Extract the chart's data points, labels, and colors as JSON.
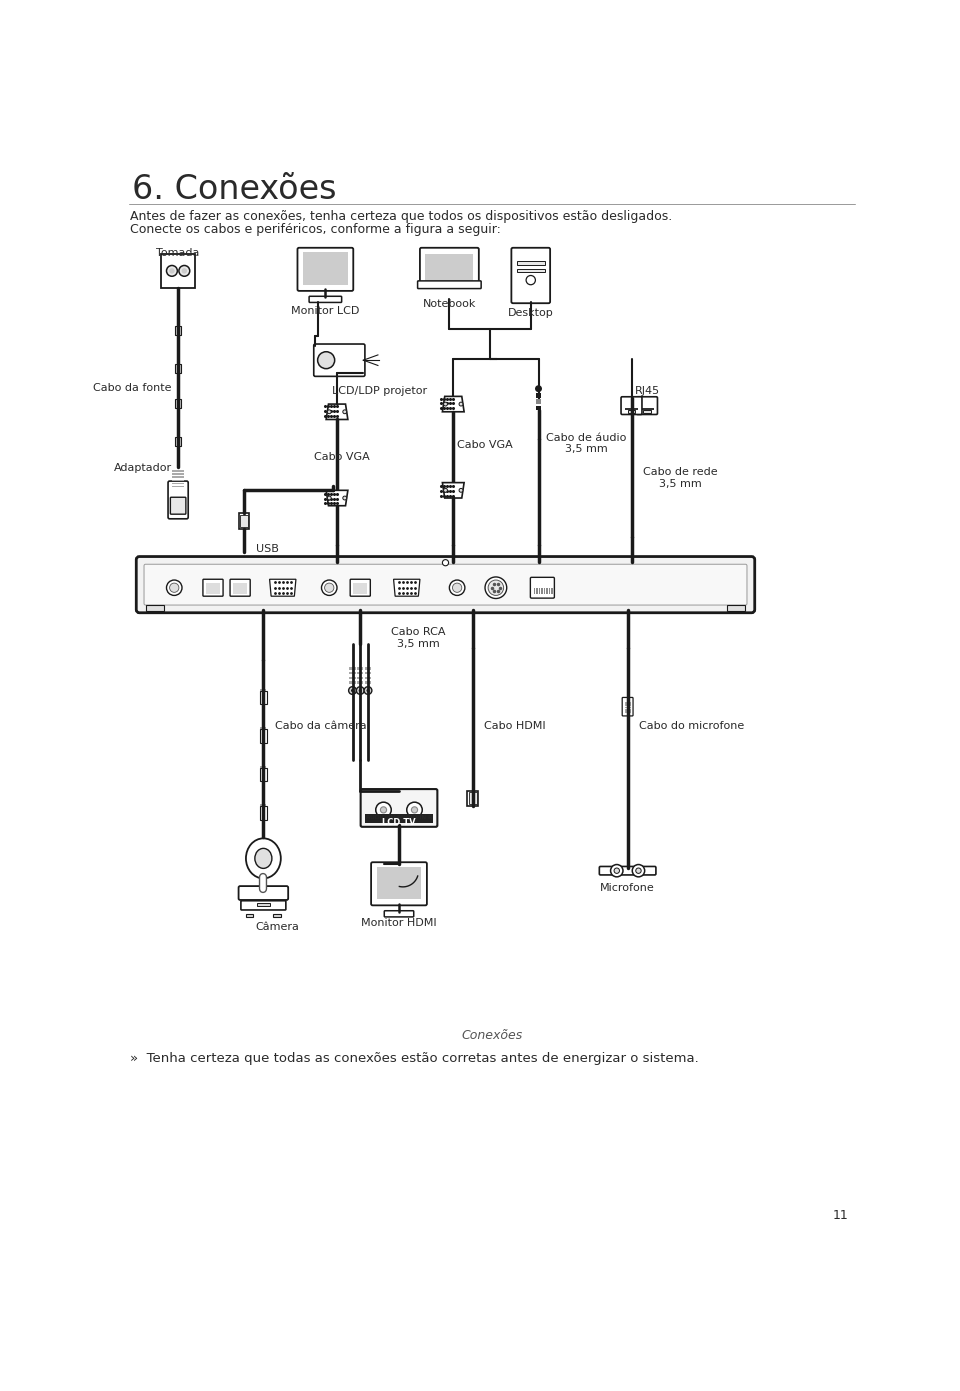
{
  "title": "6. Conexões",
  "line1": "Antes de fazer as conexões, tenha certeza que todos os dispositivos estão desligados.",
  "line2": "Conecte os cabos e periféricos, conforme a figura a seguir:",
  "footer_note": "»  Tenha certeza que todas as conexões estão corretas antes de energizar o sistema.",
  "footer_caption": "Conexões",
  "page_number": "11",
  "bg_color": "#ffffff",
  "text_color": "#2a2a2a",
  "label_color": "#2a2a2a",
  "line_color": "#1a1a1a",
  "gray": "#888888",
  "lightgray": "#cccccc",
  "darkgray": "#555555"
}
